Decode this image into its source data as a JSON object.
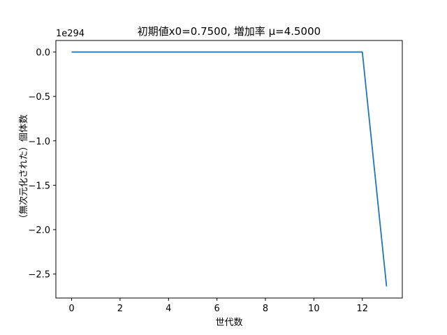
{
  "chart_data": {
    "type": "line",
    "title": "初期値x0=0.7500, 増加率 μ=4.5000",
    "xlabel": "世代数",
    "ylabel": "（無次元化された）個体数",
    "y_offset_label": "1e294",
    "xlim": [
      -0.65,
      13.65
    ],
    "ylim": [
      -2.77,
      0.13
    ],
    "x_ticks": [
      0,
      2,
      4,
      6,
      8,
      10,
      12
    ],
    "x_tick_labels": [
      "0",
      "2",
      "4",
      "6",
      "8",
      "10",
      "12"
    ],
    "y_ticks": [
      0.0,
      -0.5,
      -1.0,
      -1.5,
      -2.0,
      -2.5
    ],
    "y_tick_labels": [
      "0.0",
      "−0.5",
      "−1.0",
      "−1.5",
      "−2.0",
      "−2.5"
    ],
    "grid": false,
    "series": [
      {
        "name": "個体数",
        "color": "#1f77b4",
        "x": [
          0,
          1,
          2,
          3,
          4,
          5,
          6,
          7,
          8,
          9,
          10,
          11,
          12,
          13
        ],
        "y": [
          0,
          0,
          0,
          0,
          0,
          0,
          0,
          0,
          0,
          0,
          0,
          0,
          0,
          -2.64
        ]
      }
    ]
  }
}
